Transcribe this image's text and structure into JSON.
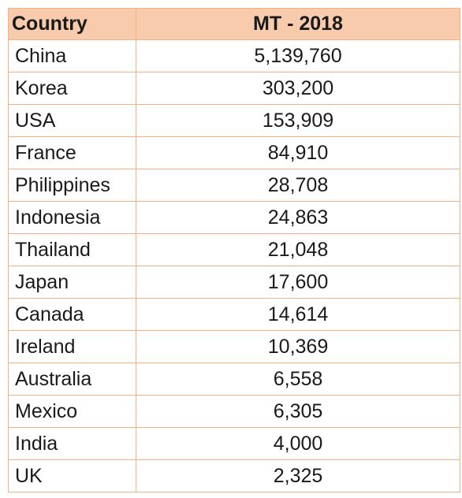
{
  "table": {
    "headers": {
      "country": "Country",
      "value": "MT - 2018"
    },
    "rows": [
      {
        "country": "China",
        "value": "5,139,760"
      },
      {
        "country": "Korea",
        "value": "303,200"
      },
      {
        "country": "USA",
        "value": "153,909"
      },
      {
        "country": "France",
        "value": "84,910"
      },
      {
        "country": "Philippines",
        "value": "28,708"
      },
      {
        "country": "Indonesia",
        "value": "24,863"
      },
      {
        "country": "Thailand",
        "value": "21,048"
      },
      {
        "country": "Japan",
        "value": "17,600"
      },
      {
        "country": "Canada",
        "value": "14,614"
      },
      {
        "country": "Ireland",
        "value": "10,369"
      },
      {
        "country": "Australia",
        "value": "6,558"
      },
      {
        "country": "Mexico",
        "value": "6,305"
      },
      {
        "country": "India",
        "value": "4,000"
      },
      {
        "country": "UK",
        "value": "2,325"
      }
    ],
    "colors": {
      "header_fill": "#f8cbad",
      "border": "#f4b183"
    }
  }
}
